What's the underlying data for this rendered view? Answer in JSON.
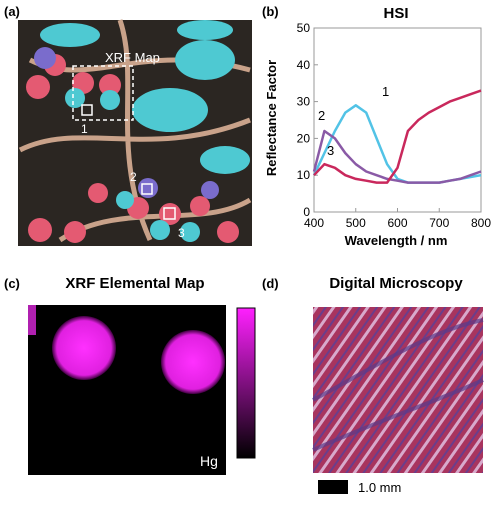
{
  "figure": {
    "panel_a": {
      "label": "(a)",
      "map_label": "XRF Map",
      "points": [
        "1",
        "2",
        "3"
      ]
    },
    "panel_c": {
      "label": "(c)",
      "title": "XRF Elemental Map",
      "element": "Hg"
    },
    "panel_d": {
      "label": "(d)",
      "title": "Digital Microscopy",
      "scale_bar": "1.0 mm"
    }
  },
  "chart_data": {
    "type": "line",
    "label": "(b)",
    "title": "HSI",
    "x_label": "Wavelength / nm",
    "y_label": "Reflectance Factor",
    "x": [
      400,
      425,
      450,
      475,
      500,
      525,
      550,
      575,
      600,
      625,
      650,
      675,
      700,
      725,
      750,
      775,
      800
    ],
    "series": [
      {
        "name": "1",
        "color": "#52c3e6",
        "values": [
          10,
          16,
          22,
          27,
          29,
          27,
          20,
          13,
          9,
          8,
          8,
          8,
          8,
          8.5,
          9,
          9.5,
          10
        ]
      },
      {
        "name": "2",
        "color": "#8a5aa6",
        "values": [
          11,
          22,
          20,
          16,
          13,
          11,
          10,
          9,
          8.5,
          8,
          8,
          8,
          8,
          8.5,
          9,
          10,
          11
        ]
      },
      {
        "name": "3",
        "color": "#c9285c",
        "values": [
          10,
          13,
          12,
          10,
          9,
          8.5,
          8,
          8,
          12,
          22,
          25,
          27,
          28.5,
          30,
          31,
          32,
          33
        ]
      }
    ],
    "xlim": [
      400,
      800
    ],
    "xticks": [
      400,
      500,
      600,
      700,
      800
    ],
    "ylim": [
      0,
      50
    ],
    "yticks": [
      0,
      10,
      20,
      30,
      40,
      50
    ]
  }
}
